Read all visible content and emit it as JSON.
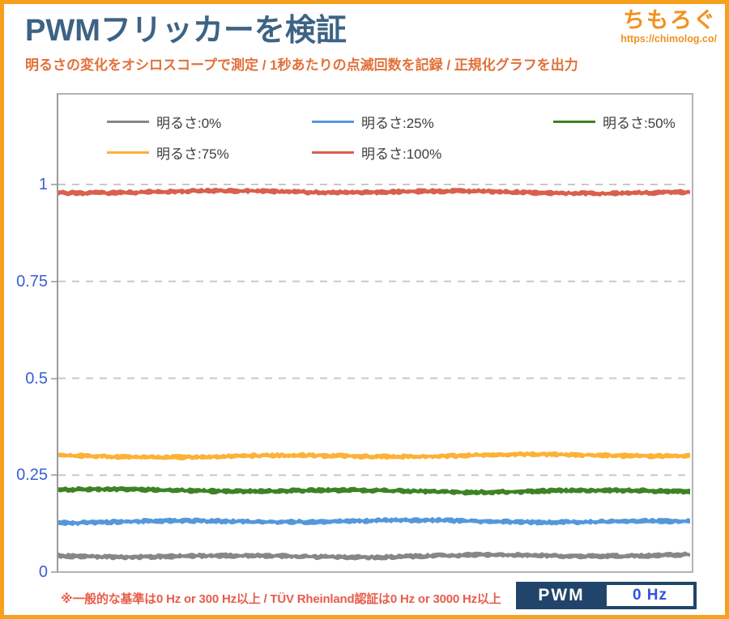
{
  "header": {
    "title": "PWMフリッカーを検証",
    "subtitle": "明るさの変化をオシロスコープで測定 / 1秒あたりの点滅回数を記録 / 正規化グラフを出力",
    "logo_name": "ちもろぐ",
    "logo_url": "https://chimolog.co/"
  },
  "chart_data": {
    "type": "line",
    "title": "",
    "xlabel": "",
    "ylabel": "",
    "x_tick_labels": [],
    "y_ticks": [
      0,
      0.25,
      0.5,
      0.75,
      1
    ],
    "ylim": [
      0,
      1.05
    ],
    "grid": "horizontal-dashed",
    "legend_position": "top-inside",
    "legend_rows": [
      [
        "明るさ:0%",
        "明るさ:25%",
        "明るさ:50%"
      ],
      [
        "明るさ:75%",
        "明るさ:100%"
      ]
    ],
    "series": [
      {
        "name": "明るさ:0%",
        "color": "#878787",
        "mean_value": 0.042,
        "noise_amplitude": 0.008,
        "shape": "flat-noisy-line"
      },
      {
        "name": "明るさ:25%",
        "color": "#5498da",
        "mean_value": 0.13,
        "noise_amplitude": 0.008,
        "shape": "flat-noisy-line"
      },
      {
        "name": "明るさ:50%",
        "color": "#3e8226",
        "mean_value": 0.21,
        "noise_amplitude": 0.008,
        "shape": "flat-noisy-line"
      },
      {
        "name": "明るさ:75%",
        "color": "#fbb237",
        "mean_value": 0.3,
        "noise_amplitude": 0.008,
        "shape": "flat-noisy-line"
      },
      {
        "name": "明るさ:100%",
        "color": "#d8604e",
        "mean_value": 0.98,
        "noise_amplitude": 0.008,
        "shape": "flat-noisy-line"
      }
    ]
  },
  "footer": {
    "note": "※一般的な基準は0 Hz or 300 Hz以上 / TÜV Rheinland認証は0 Hz or 3000 Hz以上",
    "pwm_label": "PWM",
    "pwm_value": "0 Hz"
  },
  "colors": {
    "page_border": "#f6a01e",
    "title": "#3d6384",
    "subtitle": "#e2713a",
    "logo": "#f0921e",
    "axis_label": "#3b5ed6",
    "gridline": "#c8c8c8",
    "plot_border": "#b3b3b3",
    "note": "#e85c4a",
    "pwm_box_bg": "#21456a",
    "pwm_value_text": "#3352e0"
  }
}
